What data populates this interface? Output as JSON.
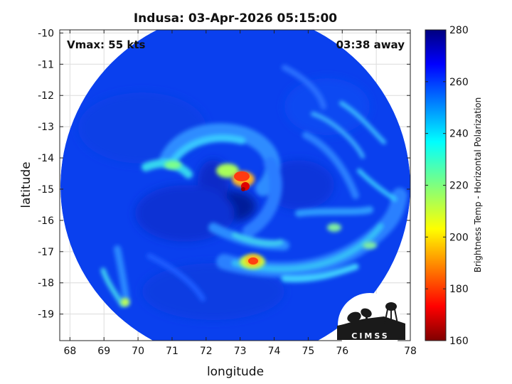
{
  "title": "Indusa: 03-Apr-2026 05:15:00",
  "vmax_label": "Vmax: 55 kts",
  "away_label": "03:38 away",
  "logo_text": "CIMSS",
  "map_data": {
    "type": "heatmap",
    "xlabel": "longitude",
    "ylabel": "latitude",
    "xlim": [
      67.7,
      78
    ],
    "ylim": [
      -19.85,
      -9.9
    ],
    "x_ticks": [
      68,
      69,
      70,
      71,
      72,
      73,
      74,
      75,
      76,
      77,
      78
    ],
    "y_ticks": [
      -10,
      -11,
      -12,
      -13,
      -14,
      -15,
      -16,
      -17,
      -18,
      -19
    ],
    "grid": true,
    "swath_center": [
      72.8,
      -14.9
    ],
    "colorbar": {
      "label": "Brightness Temp - Horizontal Polarization",
      "range": [
        160,
        280
      ],
      "ticks": [
        160,
        180,
        200,
        220,
        240,
        260,
        280
      ],
      "colormap": "jet"
    },
    "storm_center": [
      73.1,
      -14.95
    ],
    "features": [
      {
        "name": "eyewall-core",
        "lon": 73.1,
        "lat": -15.0,
        "tb": 175
      },
      {
        "name": "eyewall-north",
        "lon": 72.9,
        "lat": -14.7,
        "tb": 195
      },
      {
        "name": "southern-band-core",
        "lon": 73.3,
        "lat": -17.35,
        "tb": 185
      },
      {
        "name": "western-band",
        "lon": 71.2,
        "lat": -14.25,
        "tb": 228
      },
      {
        "name": "southwest-band",
        "lon": 69.6,
        "lat": -18.6,
        "tb": 228
      },
      {
        "name": "eastern-band",
        "lon": 76.2,
        "lat": -16.6,
        "tb": 232
      }
    ]
  },
  "colors": {
    "background_field": "#0a40ee",
    "eye_region": "#001a9a",
    "warm_core": "#b40000"
  }
}
